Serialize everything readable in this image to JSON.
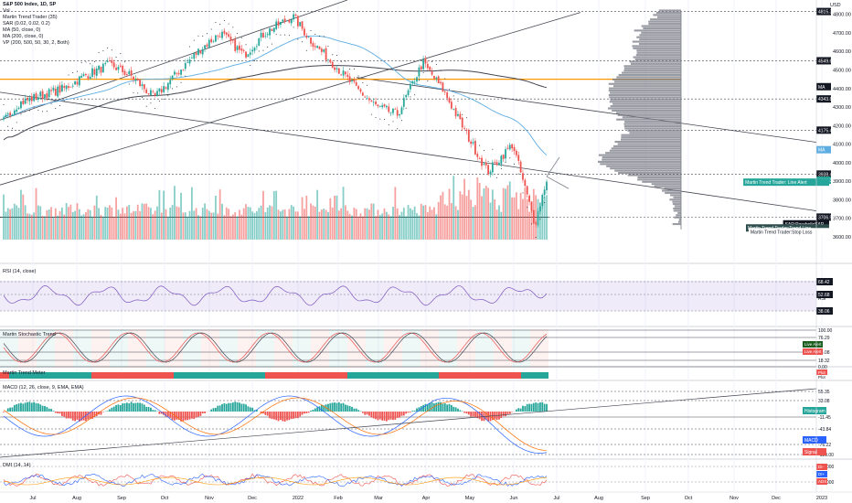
{
  "header": {
    "title": "S&P 500 Index, 1D, SP",
    "currency": "USD",
    "legend": [
      "Vol",
      "Martin Trend Trader (35)",
      "SAR (0.02, 0.02, 0.2)",
      "MA (50, close, 0)",
      "MA (200, close, 0)",
      "VP (200, 500, 50, 30, 2, Both)"
    ]
  },
  "chart_data": [
    {
      "type": "candlestick",
      "title": "S&P 500 Index, 1D, SP",
      "x_ticks": [
        "Jul",
        "Aug",
        "Sep",
        "Oct",
        "Nov",
        "Dec",
        "2022",
        "Feb",
        "Mar",
        "Apr",
        "May",
        "Jun",
        "Jul",
        "Aug",
        "Sep",
        "Oct",
        "Nov",
        "Dec",
        "2023"
      ],
      "y_ticks": [
        4800,
        4700,
        4600,
        4500,
        4400,
        4300,
        4200,
        4100,
        4000,
        3900,
        3800,
        3700,
        3600
      ],
      "ylim": [
        3585,
        4838
      ],
      "series_close": [
        {
          "date": "2021-06-21",
          "close": 4224
        },
        {
          "date": "2021-07-01",
          "close": 4320
        },
        {
          "date": "2021-07-15",
          "close": 4360
        },
        {
          "date": "2021-08-01",
          "close": 4400
        },
        {
          "date": "2021-08-15",
          "close": 4470
        },
        {
          "date": "2021-09-01",
          "close": 4530
        },
        {
          "date": "2021-09-15",
          "close": 4470
        },
        {
          "date": "2021-10-01",
          "close": 4350
        },
        {
          "date": "2021-10-15",
          "close": 4470
        },
        {
          "date": "2021-11-01",
          "close": 4610
        },
        {
          "date": "2021-11-15",
          "close": 4700
        },
        {
          "date": "2021-12-01",
          "close": 4580
        },
        {
          "date": "2021-12-15",
          "close": 4700
        },
        {
          "date": "2022-01-03",
          "close": 4790
        },
        {
          "date": "2022-01-15",
          "close": 4660
        },
        {
          "date": "2022-02-01",
          "close": 4520
        },
        {
          "date": "2022-02-15",
          "close": 4400
        },
        {
          "date": "2022-03-01",
          "close": 4300
        },
        {
          "date": "2022-03-15",
          "close": 4260
        },
        {
          "date": "2022-04-01",
          "close": 4540
        },
        {
          "date": "2022-04-15",
          "close": 4390
        },
        {
          "date": "2022-05-01",
          "close": 4150
        },
        {
          "date": "2022-05-15",
          "close": 3950
        },
        {
          "date": "2022-06-01",
          "close": 4100
        },
        {
          "date": "2022-06-16",
          "close": 3670
        },
        {
          "date": "2022-06-24",
          "close": 3911
        }
      ],
      "price_labels": [
        {
          "text": "4815.33",
          "color": "#131722",
          "value": 4815.33
        },
        {
          "text": "4549.66",
          "color": "#131722",
          "value": 4549.66
        },
        {
          "text": "MA",
          "color": "#131722",
          "value": 4410
        },
        {
          "text": "4343.85",
          "color": "#131722",
          "value": 4343.85
        },
        {
          "text": "4175.46",
          "color": "#131722",
          "value": 4175.46
        },
        {
          "text": "MA",
          "color": "#5dade2",
          "value": 4070
        },
        {
          "text": "3938.47",
          "color": "#131722",
          "value": 3938.47
        },
        {
          "text": "3905.37",
          "color": "#26a69a",
          "value": 3905.37
        },
        {
          "text": "Martin Trend Trader: Line Alert",
          "color": "#26a69a",
          "value": 3895
        },
        {
          "text": "3706.52",
          "color": "#131722",
          "value": 3706.52
        },
        {
          "text": "SAR:ParabolicSAR",
          "color": "#131722",
          "value": 3670
        },
        {
          "text": "Martin Trend Trader:Trend Line",
          "color": "#2f4f4f",
          "value": 3648
        },
        {
          "text": "Martin Trend Trader:Stop Loss",
          "color": "#ffffff",
          "value": 3628
        }
      ],
      "h_levels": [
        4815.33,
        4549.66,
        4343.85,
        4175.46,
        3938.47,
        3706.52
      ],
      "poc_level": 4450
    },
    {
      "type": "line",
      "title": "RSI (14, close)",
      "y_ticks": [
        "68.42",
        "52.68",
        "38.06"
      ],
      "last_label": "RSI"
    },
    {
      "type": "line",
      "title": "Martin Stochastic Trend",
      "y_ticks": [
        "100.00",
        "76.29",
        "48.08",
        "18.32",
        "0.00"
      ],
      "alerts": [
        "Live Alert",
        "Live Alert"
      ]
    },
    {
      "type": "bar",
      "title": "Martin Trend Meter",
      "labels": [
        "Plot",
        "Plot"
      ]
    },
    {
      "type": "bar",
      "title": "MACD (12, 26, close, 9, EMA, EMA)",
      "y_ticks": [
        "55.35",
        "33.08",
        "-11.45",
        "-43.84",
        "-76.22",
        "-120.00"
      ],
      "last_labels": [
        "Histogram",
        "MACD",
        "Signal"
      ]
    },
    {
      "type": "line",
      "title": "DMI (14, 14)",
      "y_ticks": [
        "50.000",
        "25.000"
      ],
      "last_labels": [
        "DI-",
        "DI+",
        "ADX"
      ]
    }
  ],
  "time_axis": [
    "Jul",
    "Aug",
    "Sep",
    "Oct",
    "Nov",
    "Dec",
    "2022",
    "Feb",
    "Mar",
    "Apr",
    "May",
    "Jun",
    "Jul",
    "Aug",
    "Sep",
    "Oct",
    "Nov",
    "Dec",
    "2023"
  ],
  "colors": {
    "up": "#26a69a",
    "down": "#ef5350",
    "ma50": "#5dade2",
    "ma200": "#434651",
    "poc": "#ff9800",
    "vp": "#787b86"
  }
}
